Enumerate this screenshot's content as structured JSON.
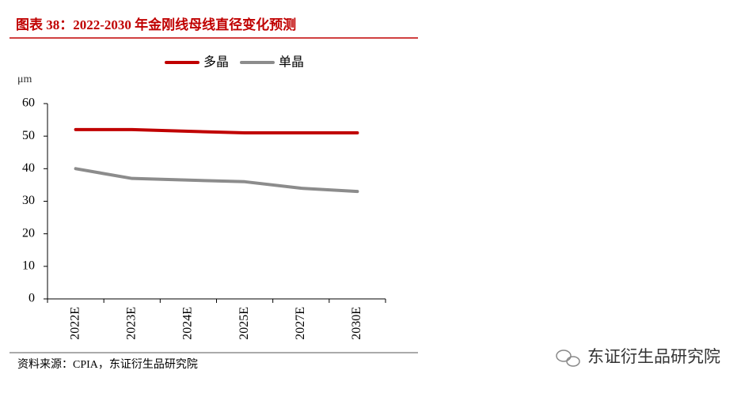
{
  "chart_data": {
    "type": "line",
    "title": "图表 38：2022-2030 年金刚线母线直径变化预测",
    "y_unit": "μm",
    "categories": [
      "2022E",
      "2023E",
      "2024E",
      "2025E",
      "2027E",
      "2030E"
    ],
    "series": [
      {
        "name": "多晶",
        "color": "#c00000",
        "values": [
          52,
          52,
          51.5,
          51,
          51,
          51
        ]
      },
      {
        "name": "单晶",
        "color": "#8c8c8c",
        "values": [
          40,
          37,
          36.5,
          36,
          34,
          33
        ]
      }
    ],
    "ylim": [
      0,
      60
    ],
    "yticks": [
      0,
      10,
      20,
      30,
      40,
      50,
      60
    ],
    "legend": "top",
    "source": "资料来源：CPIA，东证衍生品研究院",
    "watermark": "东证衍生品研究院"
  }
}
